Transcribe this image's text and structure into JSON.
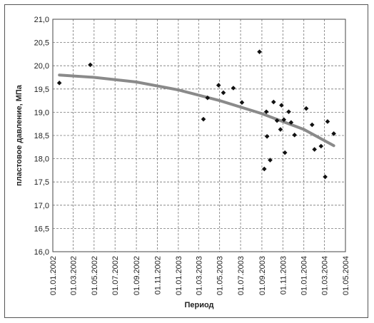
{
  "chart_data": {
    "type": "scatter",
    "xlabel": "Период",
    "ylabel": "пластовое давление, МПа",
    "ylim": [
      16.0,
      21.0
    ],
    "xlim": [
      "2002-01-01",
      "2004-05-01"
    ],
    "grid": true,
    "x_ticks": [
      "01.01.2002",
      "01.03.2002",
      "01.05.2002",
      "01.07.2002",
      "01.09.2002",
      "01.11.2002",
      "01.01.2003",
      "01.03.2003",
      "01.05.2003",
      "01.07.2003",
      "01.09.2003",
      "01.11.2003",
      "01.01.2004",
      "01.03.2004",
      "01.05.2004"
    ],
    "y_ticks": [
      "16,0",
      "16,5",
      "17,0",
      "17,5",
      "18,0",
      "18,5",
      "19,0",
      "19,5",
      "20,0",
      "20,5",
      "21,0"
    ],
    "series": [
      {
        "type": "scatter",
        "points": [
          {
            "x": "2002-01-20",
            "y": 19.63
          },
          {
            "x": "2002-04-20",
            "y": 20.02
          },
          {
            "x": "2003-03-15",
            "y": 18.85
          },
          {
            "x": "2003-03-27",
            "y": 19.31
          },
          {
            "x": "2003-04-28",
            "y": 19.58
          },
          {
            "x": "2003-05-12",
            "y": 19.42
          },
          {
            "x": "2003-06-10",
            "y": 19.52
          },
          {
            "x": "2003-07-05",
            "y": 19.21
          },
          {
            "x": "2003-08-25",
            "y": 20.3
          },
          {
            "x": "2003-09-08",
            "y": 17.78
          },
          {
            "x": "2003-09-14",
            "y": 19.01
          },
          {
            "x": "2003-09-16",
            "y": 18.48
          },
          {
            "x": "2003-09-25",
            "y": 17.97
          },
          {
            "x": "2003-10-05",
            "y": 19.22
          },
          {
            "x": "2003-10-15",
            "y": 18.82
          },
          {
            "x": "2003-10-25",
            "y": 18.63
          },
          {
            "x": "2003-10-28",
            "y": 19.15
          },
          {
            "x": "2003-11-04",
            "y": 18.84
          },
          {
            "x": "2003-11-07",
            "y": 18.13
          },
          {
            "x": "2003-11-18",
            "y": 19.01
          },
          {
            "x": "2003-11-25",
            "y": 18.78
          },
          {
            "x": "2003-12-05",
            "y": 18.51
          },
          {
            "x": "2004-01-08",
            "y": 19.08
          },
          {
            "x": "2004-01-25",
            "y": 18.73
          },
          {
            "x": "2004-02-01",
            "y": 18.2
          },
          {
            "x": "2004-02-20",
            "y": 18.27
          },
          {
            "x": "2004-03-03",
            "y": 17.61
          },
          {
            "x": "2004-03-10",
            "y": 18.8
          },
          {
            "x": "2004-03-28",
            "y": 18.54
          }
        ]
      },
      {
        "type": "line",
        "points": [
          {
            "x": "2002-01-20",
            "y": 19.8
          },
          {
            "x": "2002-05-01",
            "y": 19.75
          },
          {
            "x": "2002-09-01",
            "y": 19.65
          },
          {
            "x": "2003-01-01",
            "y": 19.48
          },
          {
            "x": "2003-05-01",
            "y": 19.25
          },
          {
            "x": "2003-09-01",
            "y": 18.97
          },
          {
            "x": "2004-01-01",
            "y": 18.63
          },
          {
            "x": "2004-03-28",
            "y": 18.28
          }
        ]
      }
    ]
  }
}
